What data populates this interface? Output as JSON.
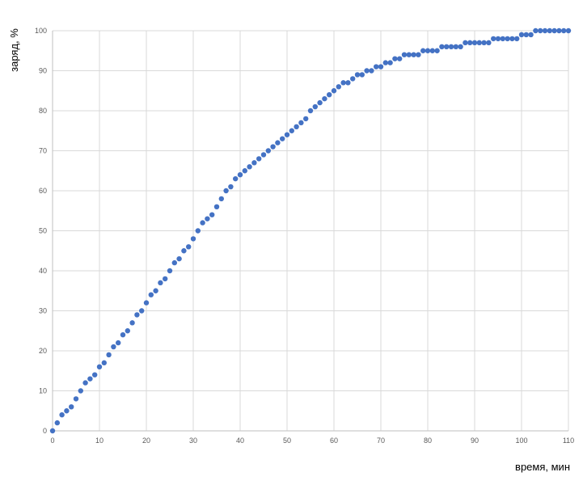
{
  "chart_data": {
    "type": "scatter",
    "title": "",
    "xlabel": "время, мин",
    "ylabel": "заряд, %",
    "xlim": [
      0,
      110
    ],
    "ylim": [
      0,
      100
    ],
    "xticks": [
      0,
      10,
      20,
      30,
      40,
      50,
      60,
      70,
      80,
      90,
      100,
      110
    ],
    "yticks": [
      0,
      10,
      20,
      30,
      40,
      50,
      60,
      70,
      80,
      90,
      100
    ],
    "grid": true,
    "marker_color": "#4472C4",
    "x": [
      0,
      1,
      2,
      3,
      4,
      5,
      6,
      7,
      8,
      9,
      10,
      11,
      12,
      13,
      14,
      15,
      16,
      17,
      18,
      19,
      20,
      21,
      22,
      23,
      24,
      25,
      26,
      27,
      28,
      29,
      30,
      31,
      32,
      33,
      34,
      35,
      36,
      37,
      38,
      39,
      40,
      41,
      42,
      43,
      44,
      45,
      46,
      47,
      48,
      49,
      50,
      51,
      52,
      53,
      54,
      55,
      56,
      57,
      58,
      59,
      60,
      61,
      62,
      63,
      64,
      65,
      66,
      67,
      68,
      69,
      70,
      71,
      72,
      73,
      74,
      75,
      76,
      77,
      78,
      79,
      80,
      81,
      82,
      83,
      84,
      85,
      86,
      87,
      88,
      89,
      90,
      91,
      92,
      93,
      94,
      95,
      96,
      97,
      98,
      99,
      100,
      101,
      102,
      103,
      104,
      105,
      106,
      107,
      108,
      109,
      110
    ],
    "y": [
      0,
      2,
      4,
      5,
      6,
      8,
      10,
      12,
      13,
      14,
      16,
      17,
      19,
      21,
      22,
      24,
      25,
      27,
      29,
      30,
      32,
      34,
      35,
      37,
      38,
      40,
      42,
      43,
      45,
      46,
      48,
      50,
      52,
      53,
      54,
      56,
      58,
      60,
      61,
      63,
      64,
      65,
      66,
      67,
      68,
      69,
      70,
      71,
      72,
      73,
      74,
      75,
      76,
      77,
      78,
      80,
      81,
      82,
      83,
      84,
      85,
      86,
      87,
      87,
      88,
      89,
      89,
      90,
      90,
      91,
      91,
      92,
      92,
      93,
      93,
      94,
      94,
      94,
      94,
      95,
      95,
      95,
      95,
      96,
      96,
      96,
      96,
      96,
      97,
      97,
      97,
      97,
      97,
      97,
      98,
      98,
      98,
      98,
      98,
      98,
      99,
      99,
      99,
      100,
      100,
      100,
      100,
      100,
      100,
      100,
      100
    ]
  }
}
